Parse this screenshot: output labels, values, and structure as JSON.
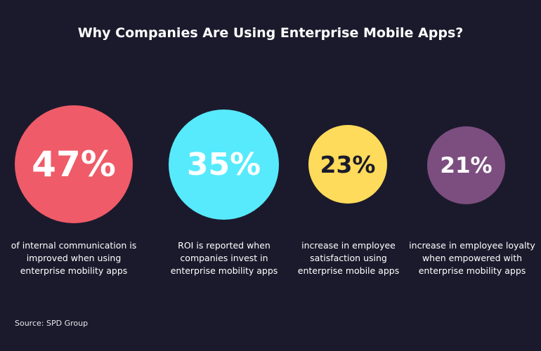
{
  "title": "Why Companies Are Using Enterprise Mobile Apps?",
  "stats": [
    {
      "value": "47%",
      "color": "#ef5b68",
      "text_color": "#ffffff",
      "description": "of internal communication is\nimproved when using\nenterprise mobility apps"
    },
    {
      "value": "35%",
      "color": "#56eafc",
      "text_color": "#ffffff",
      "description": "ROI is reported when\ncompanies invest in\nenterprise mobility apps"
    },
    {
      "value": "23%",
      "color": "#fedb5a",
      "text_color": "#1b1a2c",
      "description": "increase in employee\nsatisfaction using\nenterprise mobile apps"
    },
    {
      "value": "21%",
      "color": "#7c4e7f",
      "text_color": "#ffffff",
      "description": "increase in employee loyalty\nwhen empowered with\nenterprise mobility apps"
    }
  ],
  "source": "Source: SPD Group",
  "colors": {
    "background": "#1b1a2c"
  }
}
